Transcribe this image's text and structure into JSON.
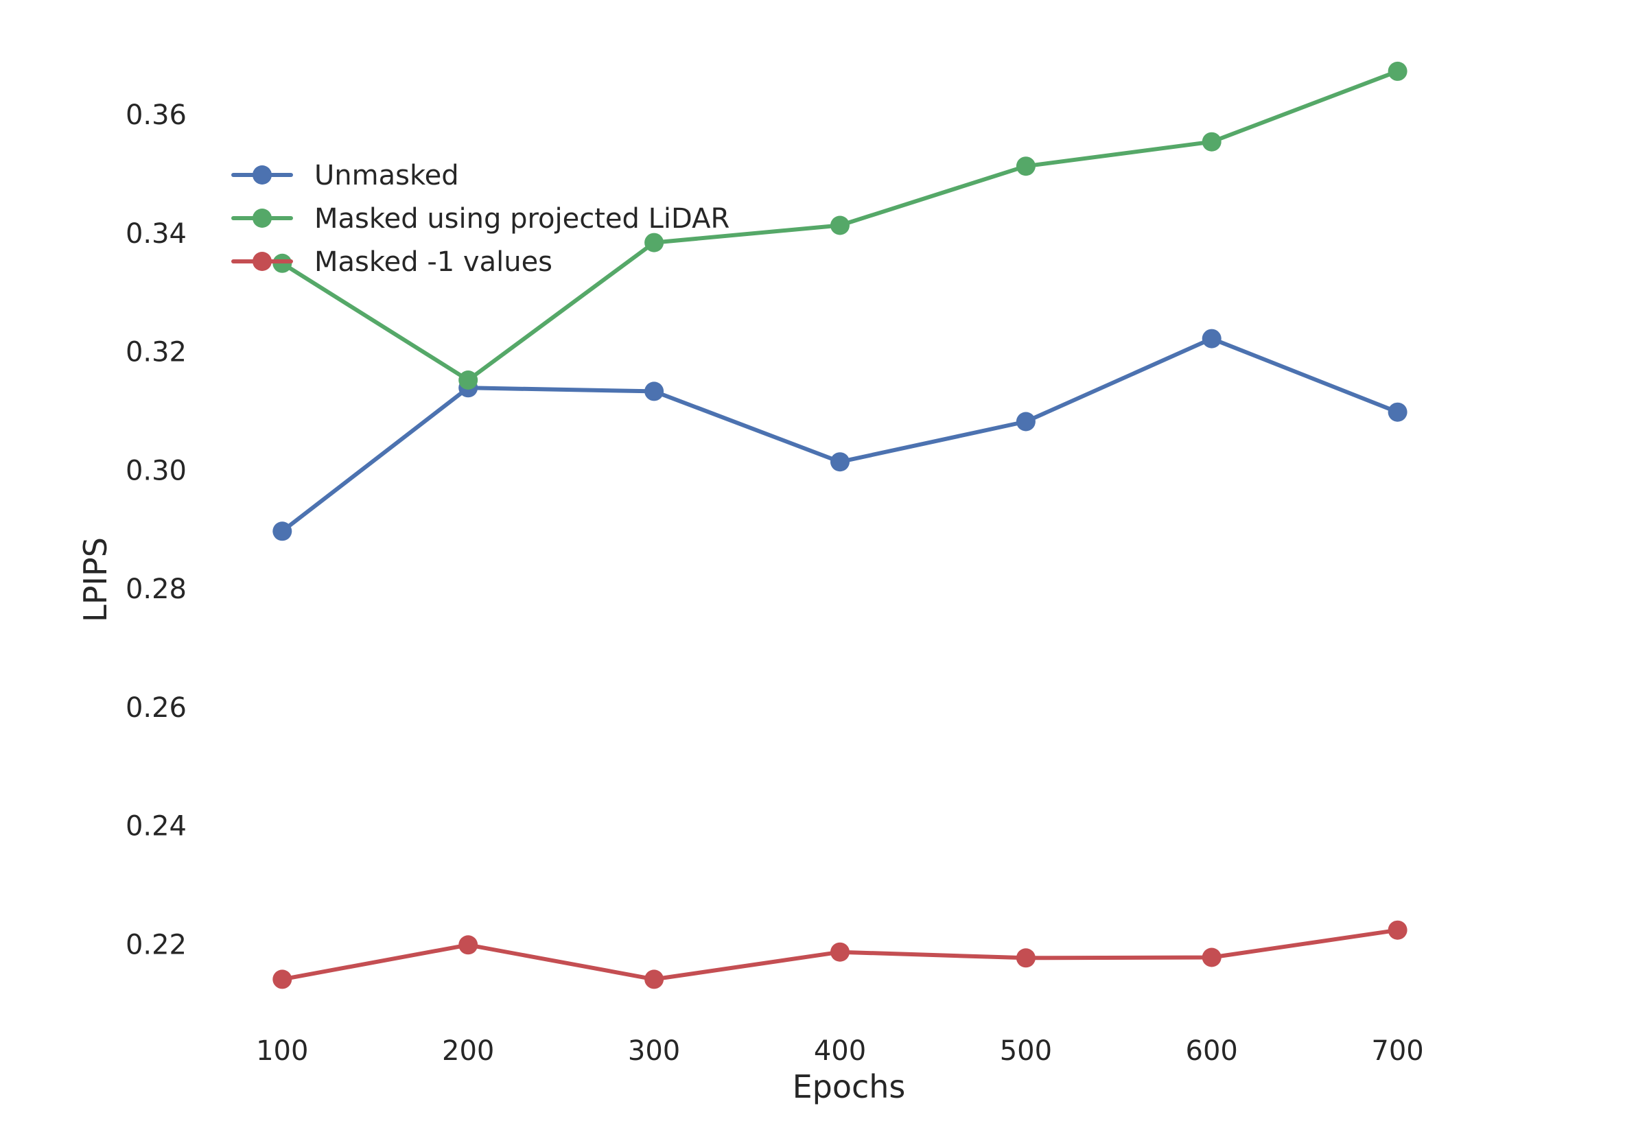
{
  "chart_data": {
    "type": "line",
    "title": "",
    "xlabel": "Epochs",
    "ylabel": "LPIPS",
    "x": [
      100,
      200,
      300,
      400,
      500,
      600,
      700
    ],
    "xticks": [
      "100",
      "200",
      "300",
      "400",
      "500",
      "600",
      "700"
    ],
    "yticks": [
      "0.22",
      "0.24",
      "0.26",
      "0.28",
      "0.30",
      "0.32",
      "0.34",
      "0.36"
    ],
    "ytick_values": [
      0.22,
      0.24,
      0.26,
      0.28,
      0.3,
      0.32,
      0.34,
      0.36
    ],
    "xlim": [
      70,
      740
    ],
    "ylim": [
      0.2057,
      0.3747
    ],
    "grid": false,
    "legend_position": "top-left",
    "series": [
      {
        "name": "Unmasked",
        "color": "#4c72b0",
        "values": [
          0.2897,
          0.3139,
          0.3133,
          0.3014,
          0.3082,
          0.3222,
          0.3098
        ]
      },
      {
        "name": "Masked using projected LiDAR",
        "color": "#55a868",
        "values": [
          0.3349,
          0.3152,
          0.3384,
          0.3413,
          0.3513,
          0.3554,
          0.3673
        ]
      },
      {
        "name": "Masked -1 values",
        "color": "#c44e52",
        "values": [
          0.2141,
          0.2199,
          0.2141,
          0.2187,
          0.2177,
          0.2178,
          0.2224
        ]
      }
    ]
  }
}
